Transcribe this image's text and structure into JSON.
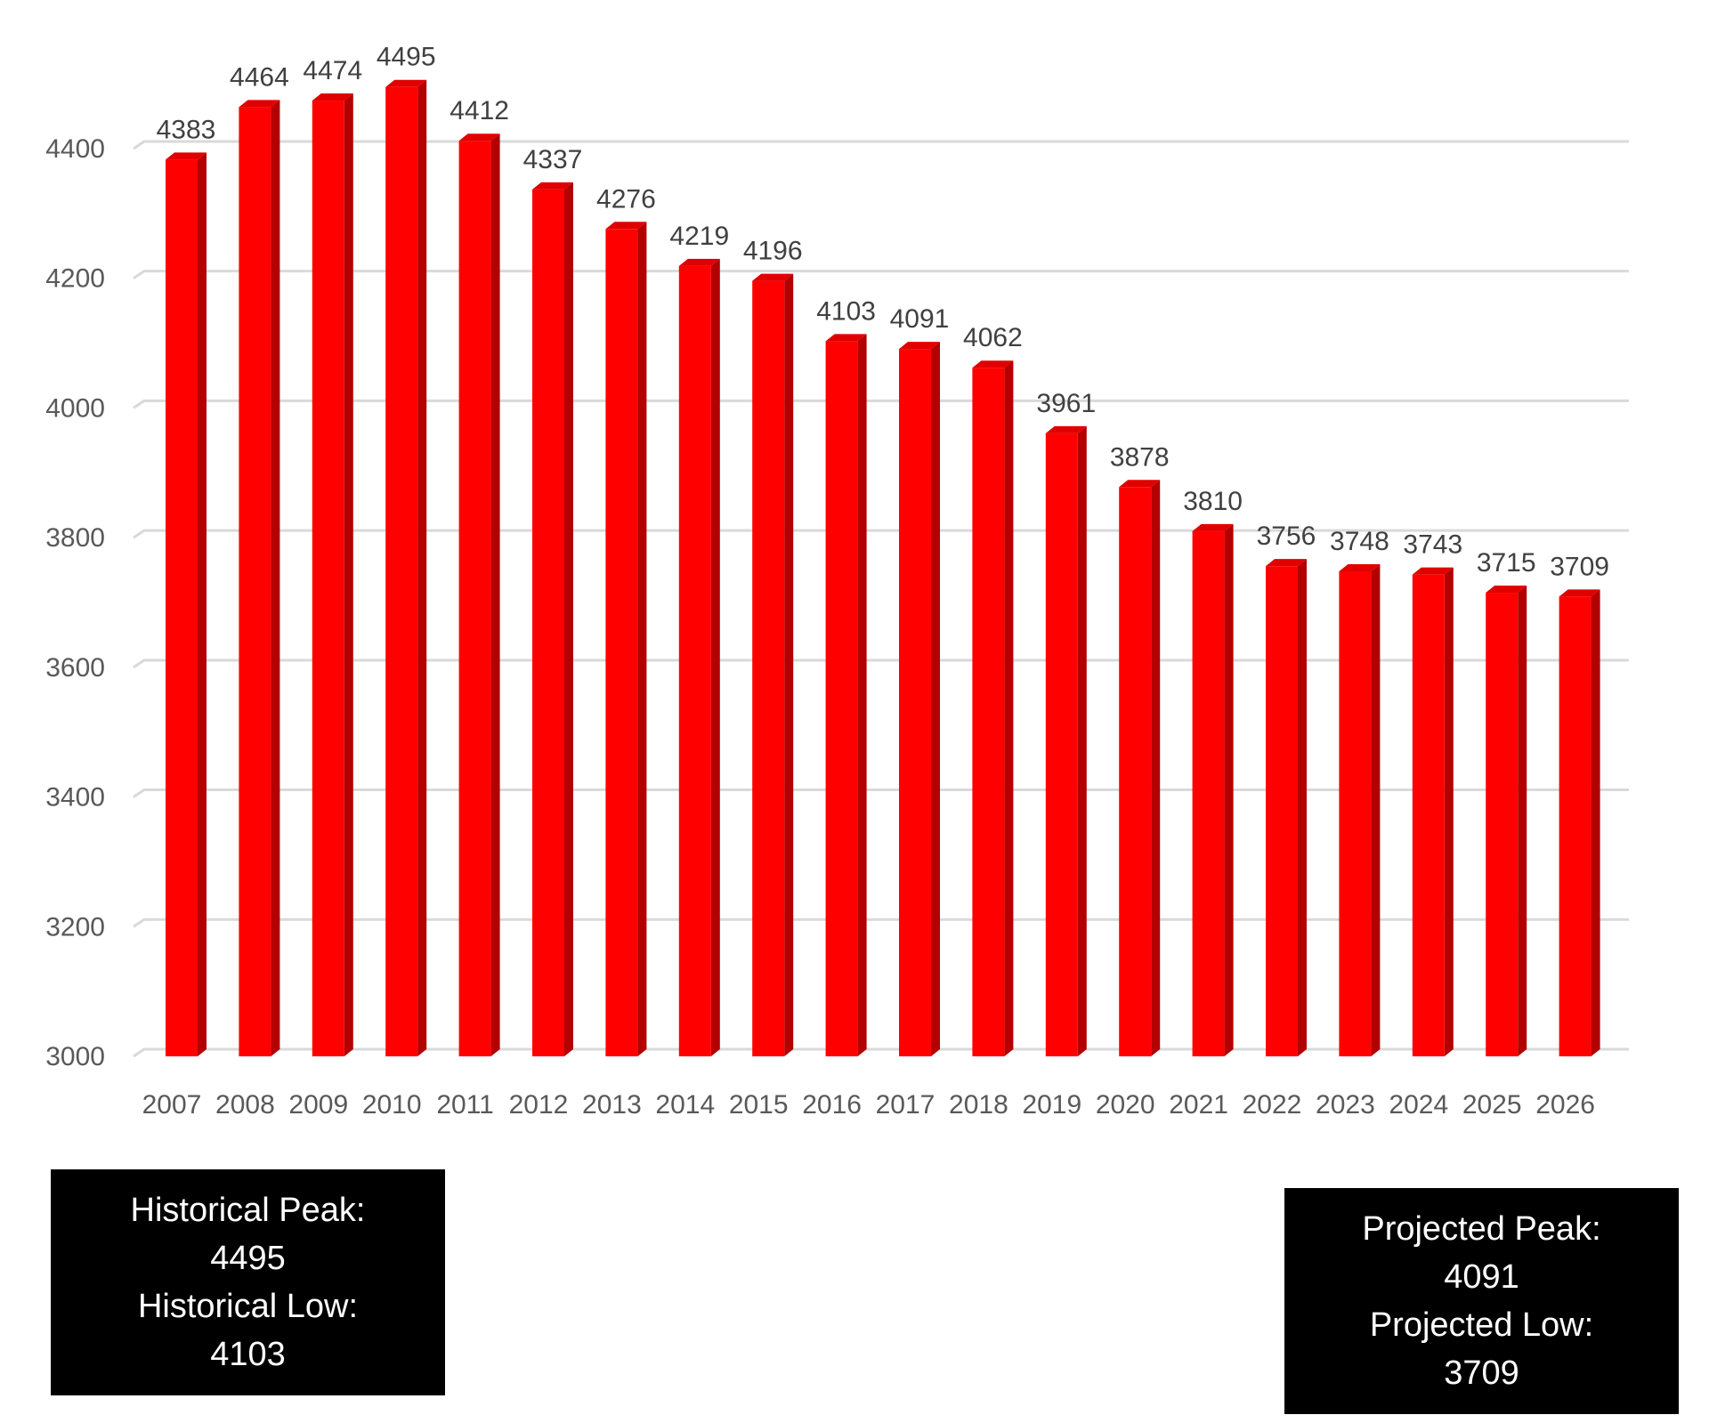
{
  "chart_data": {
    "type": "bar",
    "title": "",
    "xlabel": "",
    "ylabel": "",
    "ylim": [
      3000,
      4400
    ],
    "y_ticks": [
      3000,
      3200,
      3400,
      3600,
      3800,
      4000,
      4200,
      4400
    ],
    "grid": true,
    "style": "3d-columns",
    "bar_color": "#ff0000",
    "bar_side_color": "#b30000",
    "categories": [
      "2007",
      "2008",
      "2009",
      "2010",
      "2011",
      "2012",
      "2013",
      "2014",
      "2015",
      "2016",
      "2017",
      "2018",
      "2019",
      "2020",
      "2021",
      "2022",
      "2023",
      "2024",
      "2025",
      "2026"
    ],
    "values": [
      4383,
      4464,
      4474,
      4495,
      4412,
      4337,
      4276,
      4219,
      4196,
      4103,
      4091,
      4062,
      3961,
      3878,
      3810,
      3756,
      3748,
      3743,
      3715,
      3709
    ],
    "data_labels": true
  },
  "annotations": {
    "historical": {
      "peak_label": "Historical Peak:",
      "peak_value": "4495",
      "low_label": "Historical Low:",
      "low_value": "4103"
    },
    "projected": {
      "peak_label": "Projected Peak:",
      "peak_value": "4091",
      "low_label": "Projected Low:",
      "low_value": "3709"
    }
  }
}
